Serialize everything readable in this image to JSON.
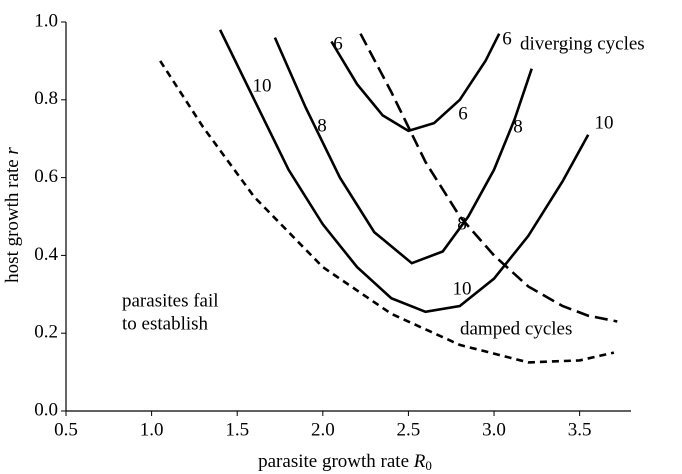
{
  "chart_data": {
    "type": "line",
    "xlabel": "parasite growth rate ",
    "xlabel_symbol": "R",
    "xlabel_subscript": "0",
    "ylabel": "host growth rate ",
    "ylabel_symbol": "r",
    "xlim": [
      0.5,
      3.8
    ],
    "ylim": [
      0,
      1
    ],
    "xticks": [
      0.5,
      {
        "value": 1,
        "label": "1.0"
      },
      1.5,
      {
        "value": 2,
        "label": "2.0"
      },
      2.5,
      {
        "value": 3,
        "label": "3.0"
      },
      3.5
    ],
    "yticks": [
      {
        "value": 0,
        "label": "0.0"
      },
      0.2,
      0.4,
      0.6,
      0.8,
      {
        "value": 1,
        "label": "1.0"
      }
    ],
    "grid": false,
    "series": [
      {
        "color": "#000000",
        "style": "short-dash",
        "x": [
          1.05,
          1.3,
          1.6,
          2.0,
          2.4,
          2.8,
          3.2,
          3.5,
          3.7
        ],
        "values": [
          0.9,
          0.73,
          0.55,
          0.37,
          0.25,
          0.17,
          0.125,
          0.13,
          0.15
        ]
      },
      {
        "color": "#000000",
        "style": "solid",
        "x": [
          1.4,
          1.6,
          1.8,
          2.0,
          2.2,
          2.4,
          2.6,
          2.8,
          3.0,
          3.2,
          3.4,
          3.55
        ],
        "values": [
          0.98,
          0.8,
          0.62,
          0.48,
          0.37,
          0.29,
          0.255,
          0.27,
          0.34,
          0.45,
          0.59,
          0.71
        ]
      },
      {
        "color": "#000000",
        "style": "solid",
        "x": [
          1.72,
          1.9,
          2.1,
          2.3,
          2.52,
          2.7,
          2.85,
          3.0,
          3.12,
          3.22
        ],
        "values": [
          0.96,
          0.78,
          0.6,
          0.46,
          0.38,
          0.41,
          0.5,
          0.62,
          0.75,
          0.88
        ]
      },
      {
        "color": "#000000",
        "style": "solid",
        "x": [
          2.05,
          2.2,
          2.35,
          2.5,
          2.65,
          2.8,
          2.95,
          3.03
        ],
        "values": [
          0.95,
          0.84,
          0.76,
          0.72,
          0.74,
          0.8,
          0.9,
          0.97
        ]
      },
      {
        "color": "#000000",
        "style": "long-dash",
        "x": [
          2.22,
          2.4,
          2.6,
          2.8,
          3.0,
          3.2,
          3.4,
          3.55,
          3.72
        ],
        "values": [
          0.97,
          0.82,
          0.64,
          0.5,
          0.4,
          0.32,
          0.27,
          0.245,
          0.23
        ]
      }
    ],
    "curve_labels": [
      "10",
      "10",
      "10",
      "8",
      "8",
      "8",
      "6",
      "6",
      "6"
    ],
    "annotations": [
      "diverging cycles",
      "damped cycles",
      "parasites fail",
      "to establish"
    ]
  }
}
